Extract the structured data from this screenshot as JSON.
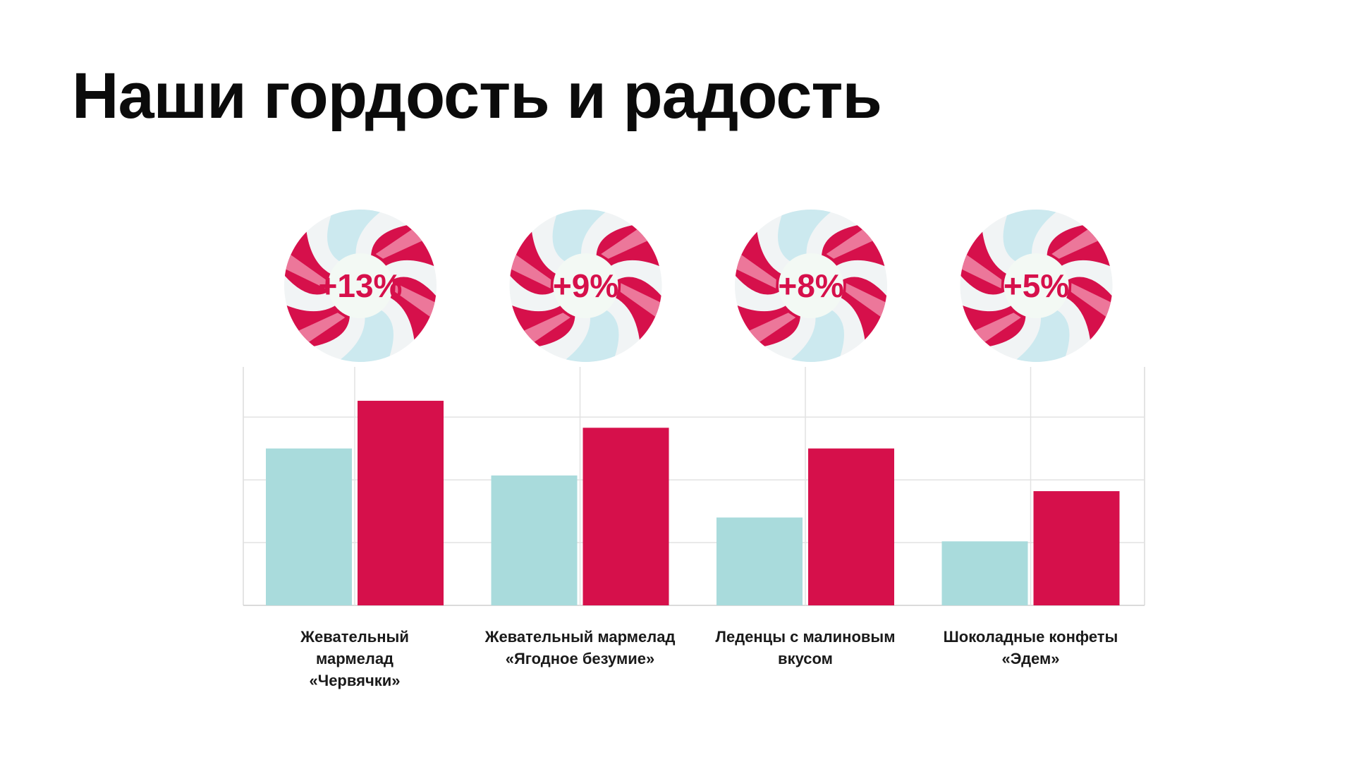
{
  "title": "Наши гордость и радость",
  "chart_data": {
    "type": "bar",
    "categories": [
      "Жевательный мармелад «Червячки»",
      "Жевательный мармелад «Ягодное безумие»",
      "Леденцы с малиновым вкусом",
      "Шоколадные конфеты «Эдем»"
    ],
    "series": [
      {
        "values": [
          2.5,
          2.07,
          1.4,
          1.02
        ],
        "color": "#a9dbdc"
      },
      {
        "values": [
          3.26,
          2.83,
          2.5,
          1.82
        ],
        "color": "#d6104b"
      }
    ],
    "growth_labels": [
      "+13%",
      "+9%",
      "+8%",
      "+5%"
    ],
    "ylim": [
      0,
      3.8
    ],
    "yticks": [
      1,
      2,
      3
    ],
    "xlabel": "",
    "ylabel": "",
    "legend": "none",
    "grid": true
  },
  "colors": {
    "accent": "#d6104b",
    "secondary": "#a9dbdc",
    "candy_light": "#f08aa8",
    "candy_blue": "#cce9ef"
  }
}
